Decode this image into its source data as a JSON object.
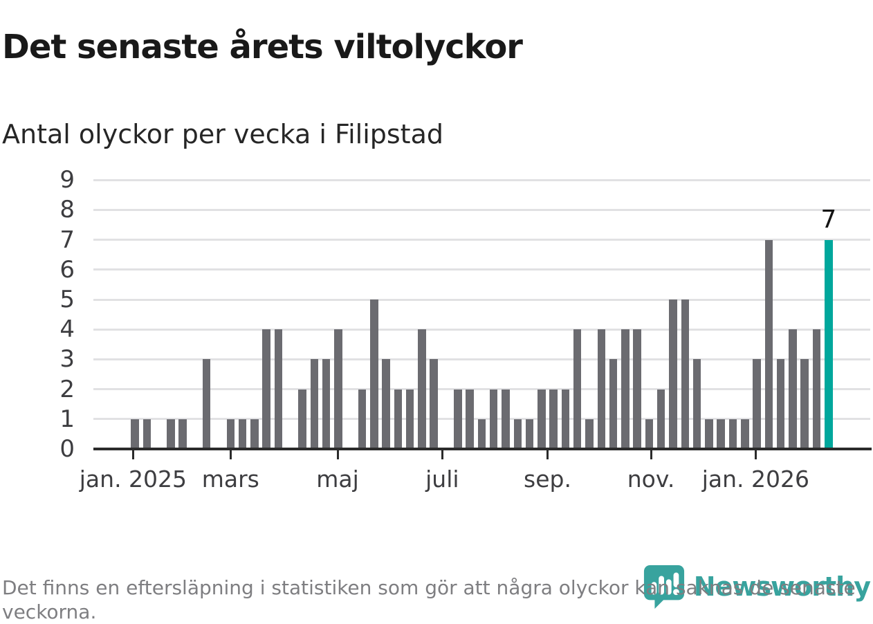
{
  "header": {
    "title": "Det senaste årets viltolyckor",
    "subtitle": "Antal olyckor per vecka i Filipstad"
  },
  "chart_data": {
    "type": "bar",
    "title": "Det senaste årets viltolyckor",
    "subtitle": "Antal olyckor per vecka i Filipstad",
    "xlabel": "",
    "ylabel": "",
    "ylim": [
      0,
      9
    ],
    "yticks": [
      0,
      1,
      2,
      3,
      4,
      5,
      6,
      7,
      8,
      9
    ],
    "grid": "horizontal",
    "values": [
      1,
      1,
      0,
      1,
      1,
      0,
      3,
      0,
      1,
      1,
      1,
      4,
      4,
      0,
      2,
      3,
      3,
      4,
      0,
      2,
      5,
      3,
      2,
      2,
      4,
      3,
      0,
      2,
      2,
      1,
      2,
      2,
      1,
      1,
      2,
      2,
      2,
      4,
      1,
      4,
      3,
      4,
      4,
      1,
      2,
      5,
      5,
      3,
      1,
      1,
      1,
      1,
      3,
      7,
      3,
      4,
      3,
      4,
      7
    ],
    "highlight_last": true,
    "last_value_label": "7",
    "xticks": [
      {
        "label": "jan. 2025",
        "week": 0.85
      },
      {
        "label": "mars",
        "week": 9
      },
      {
        "label": "maj",
        "week": 17.95
      },
      {
        "label": "juli",
        "week": 26.7
      },
      {
        "label": "sep.",
        "week": 35.5
      },
      {
        "label": "nov.",
        "week": 44.15
      },
      {
        "label": "jan. 2026",
        "week": 52.9
      }
    ],
    "colors": {
      "bar": "#6b6b70",
      "highlight": "#00a79c",
      "gridline": "#e1e1e3",
      "axis": "#2b2b2b",
      "axis_text": "#3d3d40",
      "annotation_text": "#141414"
    }
  },
  "footer": {
    "note": "Det finns en eftersläpning i statistiken som gör att några olyckor kan saknas de senaste veckorna.",
    "brand": {
      "name": "Newsworthy",
      "color": "#38a39e"
    }
  }
}
